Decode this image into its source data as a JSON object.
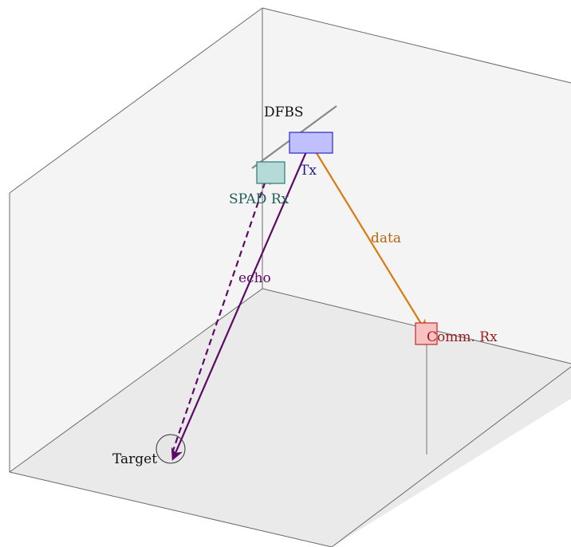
{
  "labels": {
    "dfbs": "DFBS",
    "tx": "Tx",
    "spad_rx": "SPAD Rx",
    "comm_rx": "Comm. Rx",
    "target": "Target",
    "data": "data",
    "echo": "echo"
  },
  "colors": {
    "tx_fill": "#c0c0ff",
    "tx_stroke": "#2a2ab8",
    "tx_label": "#1e1e8c",
    "spad_fill": "#b5dad7",
    "spad_stroke": "#2e7a72",
    "spad_label": "#1f5c58",
    "comm_fill": "#f9c2c2",
    "comm_stroke": "#c02a2a",
    "comm_label": "#9a1c1c",
    "data_arrow": "#d97a10",
    "data_label": "#b8650f",
    "echo_arrow": "#5c0a66",
    "echo_label": "#5c0a66",
    "room_lines": "#6a6a6a",
    "floor_fill": "#eaeaea",
    "wall_fill": "#f4f4f4"
  }
}
